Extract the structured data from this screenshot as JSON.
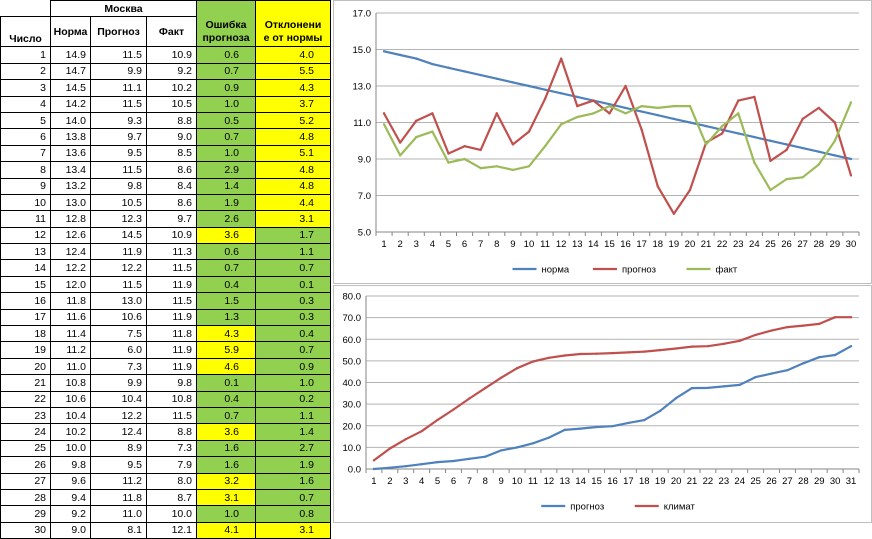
{
  "table": {
    "city": "Москва",
    "headers": {
      "day": "Число",
      "norm": "Норма",
      "forecast": "Прогноз",
      "fact": "Факт",
      "error": [
        "Ошибка",
        "прогноза"
      ],
      "deviation": [
        "Отклонени",
        "е от нормы"
      ]
    },
    "rows": [
      {
        "day": "1",
        "norm": "14.9",
        "forecast": "11.5",
        "fact": "10.9",
        "error": "0.6",
        "deviation": "4.0"
      },
      {
        "day": "2",
        "norm": "14.7",
        "forecast": "9.9",
        "fact": "9.2",
        "error": "0.7",
        "deviation": "5.5"
      },
      {
        "day": "3",
        "norm": "14.5",
        "forecast": "11.1",
        "fact": "10.2",
        "error": "0.9",
        "deviation": "4.3"
      },
      {
        "day": "4",
        "norm": "14.2",
        "forecast": "11.5",
        "fact": "10.5",
        "error": "1.0",
        "deviation": "3.7"
      },
      {
        "day": "5",
        "norm": "14.0",
        "forecast": "9.3",
        "fact": "8.8",
        "error": "0.5",
        "deviation": "5.2"
      },
      {
        "day": "6",
        "norm": "13.8",
        "forecast": "9.7",
        "fact": "9.0",
        "error": "0.7",
        "deviation": "4.8"
      },
      {
        "day": "7",
        "norm": "13.6",
        "forecast": "9.5",
        "fact": "8.5",
        "error": "1.0",
        "deviation": "5.1"
      },
      {
        "day": "8",
        "norm": "13.4",
        "forecast": "11.5",
        "fact": "8.6",
        "error": "2.9",
        "deviation": "4.8"
      },
      {
        "day": "9",
        "norm": "13.2",
        "forecast": "9.8",
        "fact": "8.4",
        "error": "1.4",
        "deviation": "4.8"
      },
      {
        "day": "10",
        "norm": "13.0",
        "forecast": "10.5",
        "fact": "8.6",
        "error": "1.9",
        "deviation": "4.4"
      },
      {
        "day": "11",
        "norm": "12.8",
        "forecast": "12.3",
        "fact": "9.7",
        "error": "2.6",
        "deviation": "3.1"
      },
      {
        "day": "12",
        "norm": "12.6",
        "forecast": "14.5",
        "fact": "10.9",
        "error": "3.6",
        "deviation": "1.7"
      },
      {
        "day": "13",
        "norm": "12.4",
        "forecast": "11.9",
        "fact": "11.3",
        "error": "0.6",
        "deviation": "1.1"
      },
      {
        "day": "14",
        "norm": "12.2",
        "forecast": "12.2",
        "fact": "11.5",
        "error": "0.7",
        "deviation": "0.7"
      },
      {
        "day": "15",
        "norm": "12.0",
        "forecast": "11.5",
        "fact": "11.9",
        "error": "0.4",
        "deviation": "0.1"
      },
      {
        "day": "16",
        "norm": "11.8",
        "forecast": "13.0",
        "fact": "11.5",
        "error": "1.5",
        "deviation": "0.3"
      },
      {
        "day": "17",
        "norm": "11.6",
        "forecast": "10.6",
        "fact": "11.9",
        "error": "1.3",
        "deviation": "0.3"
      },
      {
        "day": "18",
        "norm": "11.4",
        "forecast": "7.5",
        "fact": "11.8",
        "error": "4.3",
        "deviation": "0.4"
      },
      {
        "day": "19",
        "norm": "11.2",
        "forecast": "6.0",
        "fact": "11.9",
        "error": "5.9",
        "deviation": "0.7"
      },
      {
        "day": "20",
        "norm": "11.0",
        "forecast": "7.3",
        "fact": "11.9",
        "error": "4.6",
        "deviation": "0.9"
      },
      {
        "day": "21",
        "norm": "10.8",
        "forecast": "9.9",
        "fact": "9.8",
        "error": "0.1",
        "deviation": "1.0"
      },
      {
        "day": "22",
        "norm": "10.6",
        "forecast": "10.4",
        "fact": "10.8",
        "error": "0.4",
        "deviation": "0.2"
      },
      {
        "day": "23",
        "norm": "10.4",
        "forecast": "12.2",
        "fact": "11.5",
        "error": "0.7",
        "deviation": "1.1"
      },
      {
        "day": "24",
        "norm": "10.2",
        "forecast": "12.4",
        "fact": "8.8",
        "error": "3.6",
        "deviation": "1.4"
      },
      {
        "day": "25",
        "norm": "10.0",
        "forecast": "8.9",
        "fact": "7.3",
        "error": "1.6",
        "deviation": "2.7"
      },
      {
        "day": "26",
        "norm": "9.8",
        "forecast": "9.5",
        "fact": "7.9",
        "error": "1.6",
        "deviation": "1.9"
      },
      {
        "day": "27",
        "norm": "9.6",
        "forecast": "11.2",
        "fact": "8.0",
        "error": "3.2",
        "deviation": "1.6"
      },
      {
        "day": "28",
        "norm": "9.4",
        "forecast": "11.8",
        "fact": "8.7",
        "error": "3.1",
        "deviation": "0.7"
      },
      {
        "day": "29",
        "norm": "9.2",
        "forecast": "11.0",
        "fact": "10.0",
        "error": "1.0",
        "deviation": "0.8"
      },
      {
        "day": "30",
        "norm": "9.0",
        "forecast": "8.1",
        "fact": "12.1",
        "error": "4.1",
        "deviation": "3.1"
      }
    ],
    "error_colors": [
      "green",
      "green",
      "green",
      "green",
      "green",
      "green",
      "green",
      "green",
      "green",
      "green",
      "green",
      "yellow",
      "green",
      "green",
      "green",
      "green",
      "green",
      "yellow",
      "yellow",
      "yellow",
      "green",
      "green",
      "green",
      "yellow",
      "green",
      "green",
      "yellow",
      "yellow",
      "green",
      "yellow"
    ],
    "deviation_colors": [
      "yellow",
      "yellow",
      "yellow",
      "yellow",
      "yellow",
      "yellow",
      "yellow",
      "yellow",
      "yellow",
      "yellow",
      "yellow",
      "green",
      "green",
      "green",
      "green",
      "green",
      "green",
      "green",
      "green",
      "green",
      "green",
      "green",
      "green",
      "green",
      "green",
      "green",
      "green",
      "green",
      "green",
      "yellow"
    ],
    "cell_colors": {
      "green": "#92d050",
      "yellow": "#ffff00"
    }
  },
  "chart_data": [
    {
      "type": "line",
      "x": [
        1,
        2,
        3,
        4,
        5,
        6,
        7,
        8,
        9,
        10,
        11,
        12,
        13,
        14,
        15,
        16,
        17,
        18,
        19,
        20,
        21,
        22,
        23,
        24,
        25,
        26,
        27,
        28,
        29,
        30
      ],
      "ylim": [
        5.0,
        17.0
      ],
      "yticks": [
        "5.0",
        "7.0",
        "9.0",
        "11.0",
        "13.0",
        "15.0",
        "17.0"
      ],
      "grid": true,
      "legend": "bottom",
      "series": [
        {
          "name": "норма",
          "color": "#4f81bd",
          "values": [
            14.9,
            14.7,
            14.5,
            14.2,
            14.0,
            13.8,
            13.6,
            13.4,
            13.2,
            13.0,
            12.8,
            12.6,
            12.4,
            12.2,
            12.0,
            11.8,
            11.6,
            11.4,
            11.2,
            11.0,
            10.8,
            10.6,
            10.4,
            10.2,
            10.0,
            9.8,
            9.6,
            9.4,
            9.2,
            9.0
          ]
        },
        {
          "name": "прогноз",
          "color": "#c0504d",
          "values": [
            11.5,
            9.9,
            11.1,
            11.5,
            9.3,
            9.7,
            9.5,
            11.5,
            9.8,
            10.5,
            12.3,
            14.5,
            11.9,
            12.2,
            11.5,
            13.0,
            10.6,
            7.5,
            6.0,
            7.3,
            9.9,
            10.4,
            12.2,
            12.4,
            8.9,
            9.5,
            11.2,
            11.8,
            11.0,
            8.1
          ]
        },
        {
          "name": "факт",
          "color": "#9bbb59",
          "values": [
            10.9,
            9.2,
            10.2,
            10.5,
            8.8,
            9.0,
            8.5,
            8.6,
            8.4,
            8.6,
            9.7,
            10.9,
            11.3,
            11.5,
            11.9,
            11.5,
            11.9,
            11.8,
            11.9,
            11.9,
            9.8,
            10.8,
            11.5,
            8.8,
            7.3,
            7.9,
            8.0,
            8.7,
            10.0,
            12.1
          ]
        }
      ]
    },
    {
      "type": "line",
      "x": [
        1,
        2,
        3,
        4,
        5,
        6,
        7,
        8,
        9,
        10,
        11,
        12,
        13,
        14,
        15,
        16,
        17,
        18,
        19,
        20,
        21,
        22,
        23,
        24,
        25,
        26,
        27,
        28,
        29,
        30,
        31
      ],
      "ylim": [
        0.0,
        80.0
      ],
      "yticks": [
        "0.0",
        "10.0",
        "20.0",
        "30.0",
        "40.0",
        "50.0",
        "60.0",
        "70.0",
        "80.0"
      ],
      "grid": true,
      "legend": "bottom",
      "series": [
        {
          "name": "прогноз",
          "color": "#4f81bd",
          "values": [
            0.0,
            0.6,
            1.3,
            2.2,
            3.2,
            3.7,
            4.7,
            5.7,
            8.6,
            10.0,
            11.9,
            14.5,
            18.1,
            18.7,
            19.4,
            19.8,
            21.3,
            22.6,
            26.9,
            32.8,
            37.4,
            37.5,
            38.2,
            38.9,
            42.5,
            44.1,
            45.7,
            48.9,
            51.7,
            52.7,
            56.8
          ]
        },
        {
          "name": "климат",
          "color": "#c0504d",
          "values": [
            4.0,
            9.5,
            13.8,
            17.5,
            22.7,
            27.5,
            32.6,
            37.4,
            42.2,
            46.6,
            49.7,
            51.4,
            52.5,
            53.2,
            53.3,
            53.6,
            53.9,
            54.3,
            55.0,
            55.7,
            56.6,
            56.8,
            57.9,
            59.3,
            62.0,
            64.0,
            65.6,
            66.3,
            67.1,
            70.2,
            70.2
          ]
        }
      ]
    }
  ]
}
